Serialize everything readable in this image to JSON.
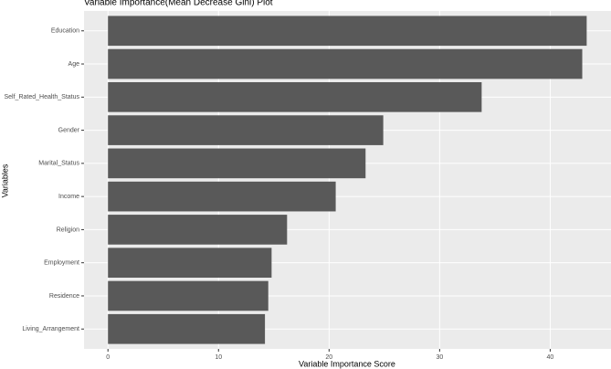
{
  "chart_data": {
    "type": "barh",
    "title": "Variable Importance(Mean Decrease Gini) Plot",
    "x_label": "Variable Importance Score",
    "y_label": "Variables",
    "categories": [
      "Education",
      "Age",
      "Self_Rated_Health_Status",
      "Gender",
      "Marital_Status",
      "Income",
      "Religion",
      "Employment",
      "Residence",
      "Living_Arrangement"
    ],
    "values": [
      43.3,
      42.9,
      33.8,
      24.9,
      23.3,
      20.6,
      16.2,
      14.8,
      14.5,
      14.2
    ],
    "color": "#595959",
    "xlim": [
      -2.165,
      45.5
    ],
    "xticks": [
      0,
      10,
      20,
      30,
      40
    ],
    "grid": true
  }
}
